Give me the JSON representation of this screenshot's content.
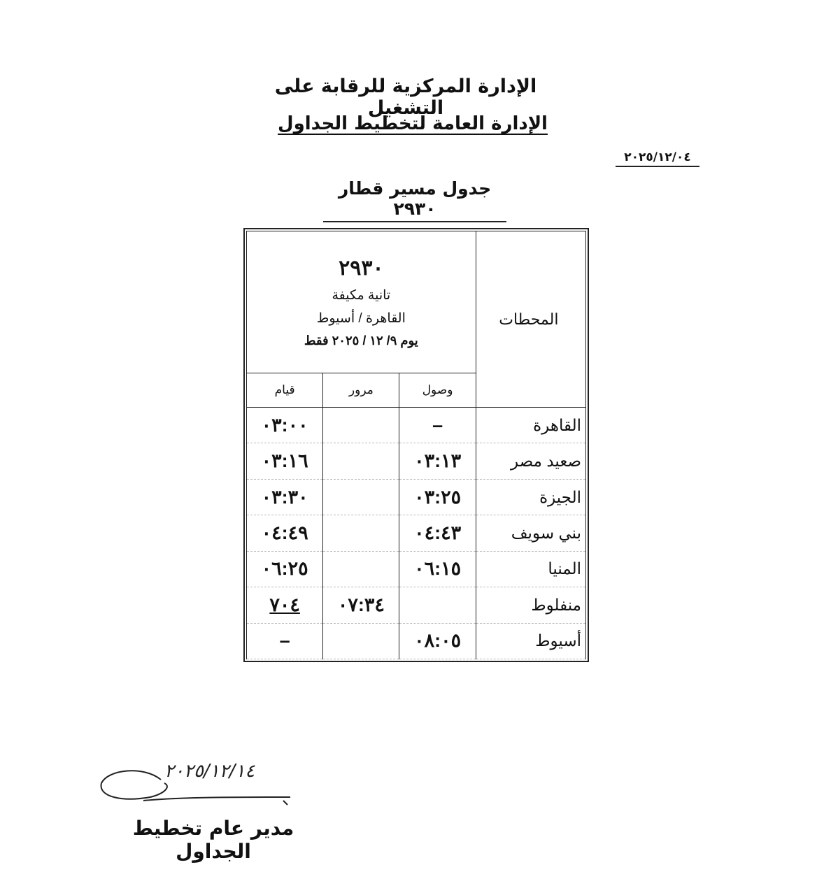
{
  "header": {
    "line1": "الإدارة المركزية للرقابة على التشغيل",
    "line2": "الإدارة العامة لتخطيط الجداول",
    "date": "٢٠٢٥/١٢/٠٤",
    "title": "جدول مسير قطار  ٢٩٣٠"
  },
  "table": {
    "stations_header": "المحطات",
    "train_number": "٢٩٣٠",
    "train_class": "تانية مكيفة",
    "route": "القاهرة / أسيوط",
    "validity": "يوم ٩/ ١٢ / ٢٠٢٥ فقط",
    "columns": {
      "arrival": "وصول",
      "pass": "مرور",
      "departure": "قيام"
    },
    "rows": [
      {
        "station": "القاهرة",
        "arrival": "–",
        "pass": "",
        "departure": "٠٣:٠٠"
      },
      {
        "station": "صعيد مصر",
        "arrival": "٠٣:١٣",
        "pass": "",
        "departure": "٠٣:١٦"
      },
      {
        "station": "الجيزة",
        "arrival": "٠٣:٢٥",
        "pass": "",
        "departure": "٠٣:٣٠"
      },
      {
        "station": "بني سويف",
        "arrival": "٠٤:٤٣",
        "pass": "",
        "departure": "٠٤:٤٩"
      },
      {
        "station": "المنيا",
        "arrival": "٠٦:١٥",
        "pass": "",
        "departure": "٠٦:٢٥"
      },
      {
        "station": "منفلوط",
        "arrival": "",
        "pass": "٠٧:٣٤",
        "departure": "٧٠٤"
      },
      {
        "station": "أسيوط",
        "arrival": "٠٨:٠٥",
        "pass": "",
        "departure": "–"
      }
    ]
  },
  "signature": {
    "handwritten_date": "٢٠٢٥/١٢/١٤",
    "title": "مدير عام تخطيط الجداول"
  }
}
